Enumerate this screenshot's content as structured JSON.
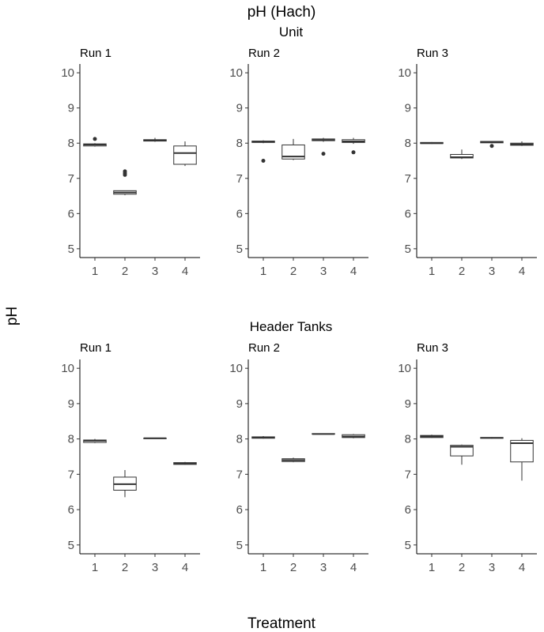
{
  "chart_data": {
    "type": "boxplot",
    "title": "pH (Hach)",
    "ylabel": "pH",
    "xlabel": "Treatment",
    "ylim": [
      4.75,
      10.25
    ],
    "yticks": [
      5,
      6,
      7,
      8,
      9,
      10
    ],
    "categories": [
      "1",
      "2",
      "3",
      "4"
    ],
    "sections": [
      {
        "title": "Unit",
        "panels": [
          {
            "label": "Run 1",
            "boxes": [
              {
                "category": "1",
                "min": 7.9,
                "q1": 7.92,
                "median": 7.96,
                "q3": 7.98,
                "max": 8.0,
                "outliers": [
                  8.12
                ]
              },
              {
                "category": "2",
                "min": 6.52,
                "q1": 6.55,
                "median": 6.6,
                "q3": 6.65,
                "max": 6.65,
                "outliers": [
                  7.1,
                  7.15,
                  7.2
                ]
              },
              {
                "category": "3",
                "min": 8.04,
                "q1": 8.06,
                "median": 8.08,
                "q3": 8.1,
                "max": 8.15,
                "outliers": []
              },
              {
                "category": "4",
                "min": 7.35,
                "q1": 7.4,
                "median": 7.72,
                "q3": 7.92,
                "max": 8.05,
                "outliers": []
              }
            ]
          },
          {
            "label": "Run 2",
            "boxes": [
              {
                "category": "1",
                "min": 8.0,
                "q1": 8.02,
                "median": 8.04,
                "q3": 8.06,
                "max": 8.08,
                "outliers": [
                  7.5
                ]
              },
              {
                "category": "2",
                "min": 7.52,
                "q1": 7.55,
                "median": 7.62,
                "q3": 7.95,
                "max": 8.12,
                "outliers": []
              },
              {
                "category": "3",
                "min": 8.04,
                "q1": 8.07,
                "median": 8.09,
                "q3": 8.12,
                "max": 8.15,
                "outliers": [
                  7.7
                ]
              },
              {
                "category": "4",
                "min": 7.98,
                "q1": 8.02,
                "median": 8.05,
                "q3": 8.1,
                "max": 8.15,
                "outliers": [
                  7.74
                ]
              }
            ]
          },
          {
            "label": "Run 3",
            "boxes": [
              {
                "category": "1",
                "min": 7.98,
                "q1": 7.99,
                "median": 8.0,
                "q3": 8.02,
                "max": 8.03,
                "outliers": []
              },
              {
                "category": "2",
                "min": 7.55,
                "q1": 7.58,
                "median": 7.6,
                "q3": 7.68,
                "max": 7.82,
                "outliers": []
              },
              {
                "category": "3",
                "min": 8.0,
                "q1": 8.01,
                "median": 8.03,
                "q3": 8.05,
                "max": 8.06,
                "outliers": [
                  7.92
                ]
              },
              {
                "category": "4",
                "min": 7.92,
                "q1": 7.94,
                "median": 7.97,
                "q3": 8.0,
                "max": 8.05,
                "outliers": []
              }
            ]
          }
        ]
      },
      {
        "title": "Header Tanks",
        "panels": [
          {
            "label": "Run 1",
            "boxes": [
              {
                "category": "1",
                "min": 7.88,
                "q1": 7.9,
                "median": 7.95,
                "q3": 7.97,
                "max": 8.0,
                "outliers": []
              },
              {
                "category": "2",
                "min": 6.35,
                "q1": 6.55,
                "median": 6.72,
                "q3": 6.92,
                "max": 7.12,
                "outliers": []
              },
              {
                "category": "3",
                "min": 8.01,
                "q1": 8.01,
                "median": 8.02,
                "q3": 8.02,
                "max": 8.03,
                "outliers": []
              },
              {
                "category": "4",
                "min": 7.27,
                "q1": 7.28,
                "median": 7.3,
                "q3": 7.33,
                "max": 7.35,
                "outliers": []
              }
            ]
          },
          {
            "label": "Run 2",
            "boxes": [
              {
                "category": "1",
                "min": 8.01,
                "q1": 8.02,
                "median": 8.04,
                "q3": 8.06,
                "max": 8.08,
                "outliers": []
              },
              {
                "category": "2",
                "min": 7.34,
                "q1": 7.36,
                "median": 7.4,
                "q3": 7.44,
                "max": 7.47,
                "outliers": []
              },
              {
                "category": "3",
                "min": 8.13,
                "q1": 8.14,
                "median": 8.14,
                "q3": 8.15,
                "max": 8.15,
                "outliers": []
              },
              {
                "category": "4",
                "min": 8.02,
                "q1": 8.04,
                "median": 8.07,
                "q3": 8.12,
                "max": 8.14,
                "outliers": []
              }
            ]
          },
          {
            "label": "Run 3",
            "boxes": [
              {
                "category": "1",
                "min": 8.03,
                "q1": 8.04,
                "median": 8.07,
                "q3": 8.1,
                "max": 8.12,
                "outliers": []
              },
              {
                "category": "2",
                "min": 7.27,
                "q1": 7.52,
                "median": 7.78,
                "q3": 7.82,
                "max": 7.84,
                "outliers": []
              },
              {
                "category": "3",
                "min": 8.01,
                "q1": 8.02,
                "median": 8.03,
                "q3": 8.04,
                "max": 8.05,
                "outliers": []
              },
              {
                "category": "4",
                "min": 6.82,
                "q1": 7.35,
                "median": 7.88,
                "q3": 7.96,
                "max": 8.02,
                "outliers": []
              }
            ]
          }
        ]
      }
    ]
  }
}
